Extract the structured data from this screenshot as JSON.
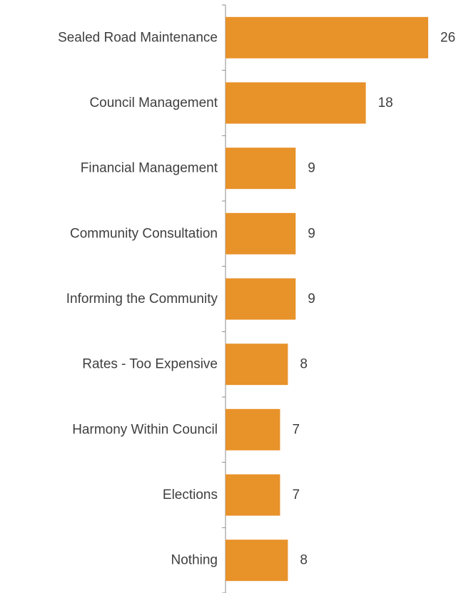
{
  "chart_data": {
    "type": "bar",
    "orientation": "horizontal",
    "categories": [
      "Sealed Road Maintenance",
      "Council Management",
      "Financial Management",
      "Community Consultation",
      "Informing the Community",
      "Rates - Too Expensive",
      "Harmony Within Council",
      "Elections",
      "Nothing"
    ],
    "values": [
      26,
      18,
      9,
      9,
      9,
      8,
      7,
      7,
      8
    ],
    "xlim": [
      0,
      26
    ],
    "bar_color": "#E8922A",
    "grid": false,
    "legend": "none"
  }
}
